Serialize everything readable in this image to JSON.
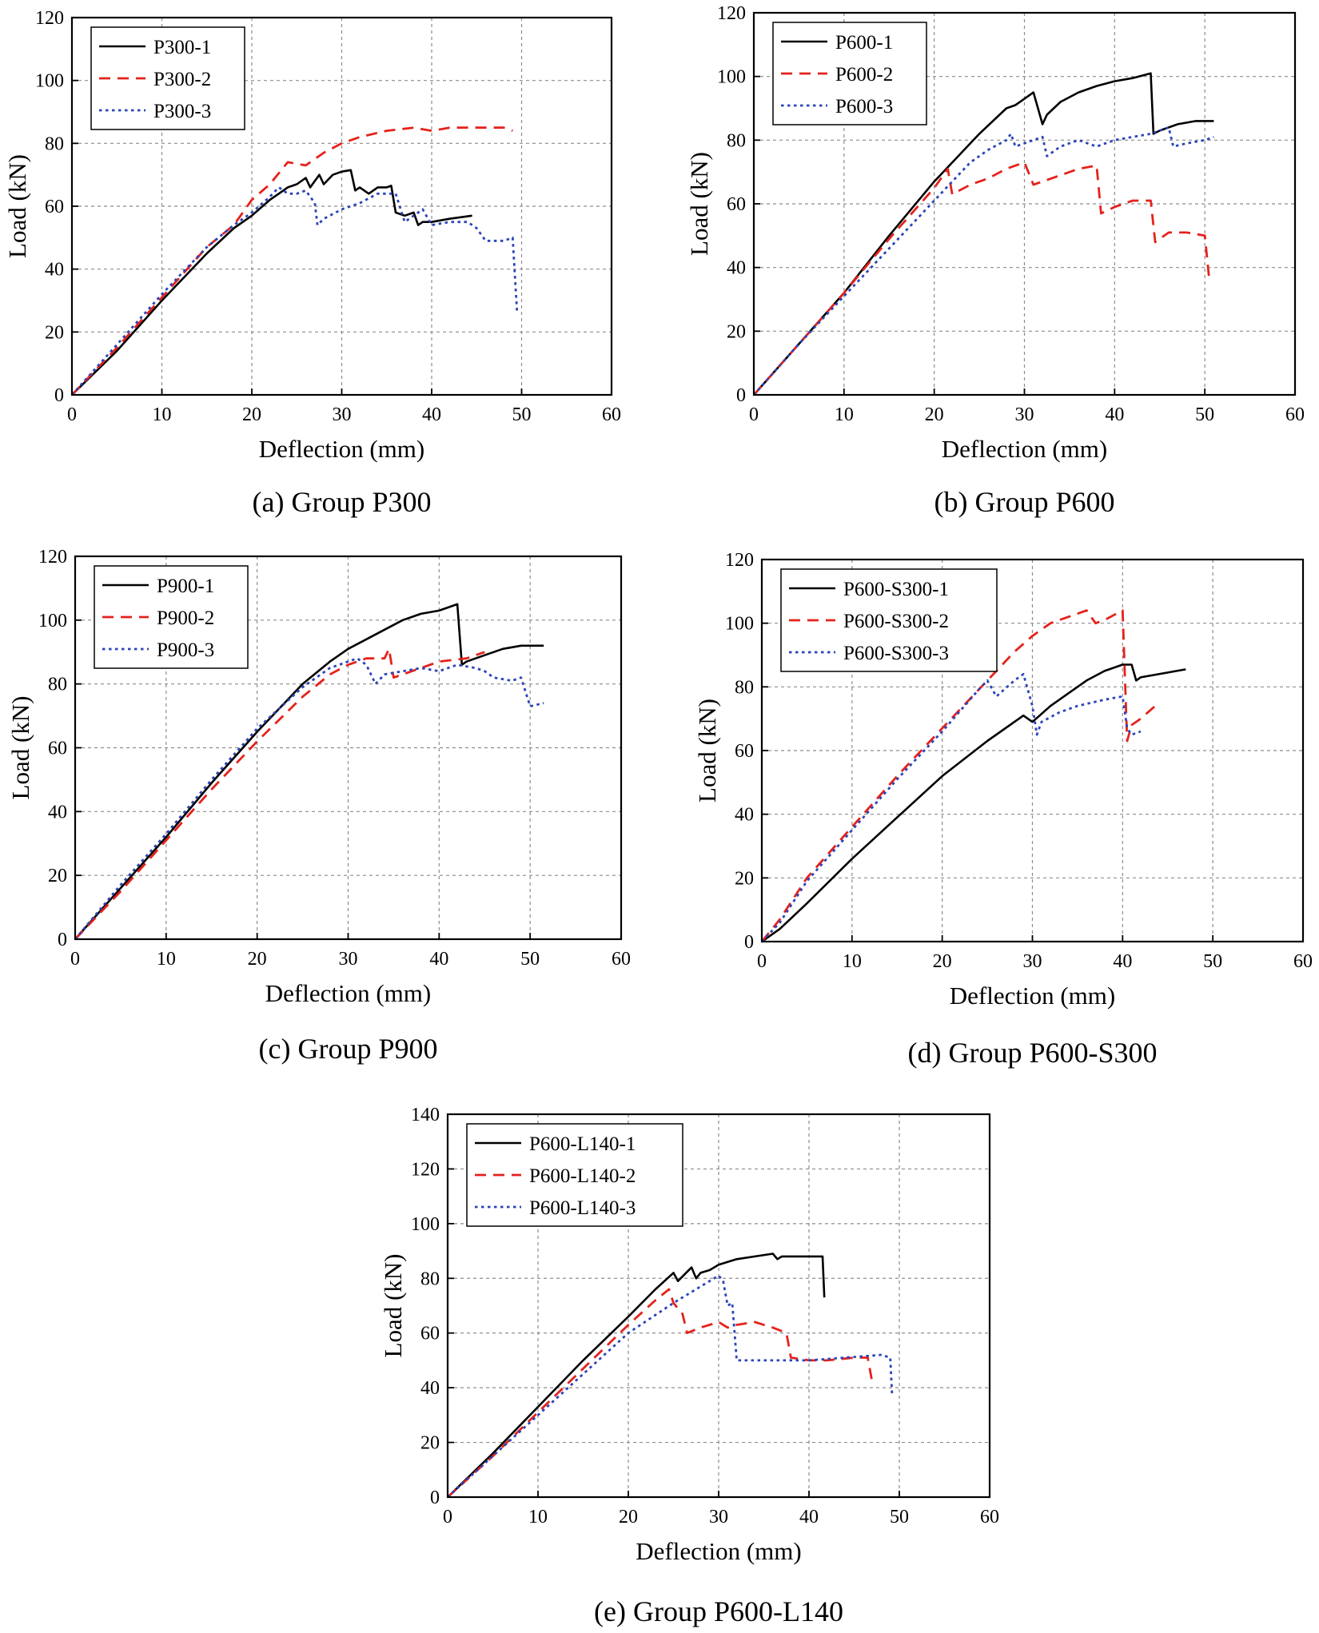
{
  "chart_data": [
    {
      "type": "line",
      "title": "",
      "caption": "(a) Group P300",
      "xlabel": "Deflection (mm)",
      "ylabel": "Load (kN)",
      "xlim": [
        0,
        60
      ],
      "ylim": [
        0,
        120
      ],
      "xticks": [
        0,
        10,
        20,
        30,
        40,
        50,
        60
      ],
      "yticks": [
        0,
        20,
        40,
        60,
        80,
        100,
        120
      ],
      "xtick_labels": [
        "0",
        "10",
        "20",
        "30",
        "40",
        "50",
        "60"
      ],
      "ytick_labels": [
        "0",
        "20",
        "40",
        "60",
        "80",
        "100",
        "120"
      ],
      "grid": true,
      "legend_position": "top-left",
      "series": [
        {
          "name": "P300-1",
          "style": "solid",
          "color": "#000000",
          "x": [
            0,
            5,
            10,
            15,
            18,
            20,
            22,
            23,
            24,
            25,
            26,
            26.5,
            27.5,
            28,
            29,
            30,
            31,
            31.5,
            32,
            33,
            34,
            35,
            35.5,
            36,
            37,
            38,
            38.5,
            39,
            40,
            42,
            44.5
          ],
          "y": [
            0,
            14,
            30,
            45,
            53,
            57,
            62,
            64,
            66,
            67,
            69,
            66,
            70,
            67,
            70,
            71,
            71.5,
            65,
            66,
            64,
            66,
            66,
            66.5,
            58,
            57,
            58,
            54,
            55,
            55,
            56,
            57
          ]
        },
        {
          "name": "P300-2",
          "style": "dashed",
          "color": "#e4221c",
          "x": [
            0,
            5,
            10,
            15,
            18,
            20,
            22,
            24,
            26,
            28,
            30,
            32,
            35,
            38,
            40,
            42,
            45,
            48,
            49
          ],
          "y": [
            0,
            15,
            31,
            47,
            54,
            62,
            67,
            74,
            73,
            77,
            80,
            82,
            84,
            85,
            84,
            85,
            85,
            85,
            84
          ]
        },
        {
          "name": "P300-3",
          "style": "dotted",
          "color": "#2b44b8",
          "x": [
            0,
            5,
            10,
            15,
            18,
            20,
            22,
            23,
            24,
            25,
            26,
            27,
            27.3,
            28,
            30,
            32,
            34,
            36,
            37,
            38,
            39,
            40,
            42,
            44,
            45,
            46,
            48,
            49,
            49.5
          ],
          "y": [
            0,
            16,
            32,
            47,
            54,
            58,
            63,
            66,
            64,
            64,
            65,
            61,
            54,
            56,
            59,
            61,
            64,
            64,
            55,
            57,
            59,
            54,
            55,
            55,
            53,
            49,
            49,
            50,
            26
          ]
        }
      ]
    },
    {
      "type": "line",
      "title": "",
      "caption": "(b) Group P600",
      "xlabel": "Deflection (mm)",
      "ylabel": "Load (kN)",
      "xlim": [
        0,
        60
      ],
      "ylim": [
        0,
        120
      ],
      "xticks": [
        0,
        10,
        20,
        30,
        40,
        50,
        60
      ],
      "yticks": [
        0,
        20,
        40,
        60,
        80,
        100,
        120
      ],
      "xtick_labels": [
        "0",
        "10",
        "20",
        "30",
        "40",
        "50",
        "60"
      ],
      "ytick_labels": [
        "0",
        "20",
        "40",
        "60",
        "80",
        "100",
        "120"
      ],
      "grid": true,
      "legend_position": "top-left",
      "series": [
        {
          "name": "P600-1",
          "style": "solid",
          "color": "#000000",
          "x": [
            0,
            5,
            10,
            15,
            20,
            25,
            28,
            29,
            30,
            31,
            32,
            32.5,
            34,
            36,
            38,
            40,
            42,
            44,
            44.3,
            45,
            47,
            49,
            51
          ],
          "y": [
            0,
            16,
            32,
            50,
            67,
            82,
            90,
            91,
            93,
            95,
            85,
            88,
            92,
            95,
            97,
            98.5,
            99.5,
            101,
            82,
            83,
            85,
            86,
            86
          ]
        },
        {
          "name": "P600-2",
          "style": "dashed",
          "color": "#e4221c",
          "x": [
            0,
            5,
            10,
            15,
            20,
            21.5,
            22,
            24,
            26,
            28,
            30,
            31,
            32,
            34,
            36,
            38,
            38.5,
            40,
            42,
            44,
            44.5,
            46,
            48,
            50,
            50.5
          ],
          "y": [
            0,
            16,
            32,
            49,
            65,
            71,
            63,
            66,
            68,
            71,
            73,
            66,
            67,
            69,
            71,
            72,
            57,
            59,
            61,
            61,
            48,
            51,
            51,
            50,
            36
          ]
        },
        {
          "name": "P600-3",
          "style": "dotted",
          "color": "#2b44b8",
          "x": [
            0,
            5,
            10,
            15,
            20,
            22,
            24,
            26,
            28,
            28.5,
            29,
            30,
            32,
            32.5,
            34,
            36,
            38,
            40,
            42,
            44,
            46,
            46.5,
            48,
            50,
            51
          ],
          "y": [
            0,
            16,
            31,
            46,
            61,
            67,
            73,
            77,
            80,
            82,
            78,
            79,
            81,
            75,
            78,
            80,
            78,
            80,
            81,
            82,
            84,
            78,
            79,
            80,
            81
          ]
        }
      ]
    },
    {
      "type": "line",
      "title": "",
      "caption": "(c) Group P900",
      "xlabel": "Deflection (mm)",
      "ylabel": "Load (kN)",
      "xlim": [
        0,
        60
      ],
      "ylim": [
        0,
        120
      ],
      "xticks": [
        0,
        10,
        20,
        30,
        40,
        50,
        60
      ],
      "yticks": [
        0,
        20,
        40,
        60,
        80,
        100,
        120
      ],
      "xtick_labels": [
        "0",
        "10",
        "20",
        "30",
        "40",
        "50",
        "60"
      ],
      "ytick_labels": [
        "0",
        "20",
        "40",
        "60",
        "80",
        "100",
        "120"
      ],
      "grid": true,
      "legend_position": "top-left",
      "series": [
        {
          "name": "P900-1",
          "style": "solid",
          "color": "#000000",
          "x": [
            0,
            5,
            10,
            15,
            20,
            25,
            28,
            30,
            32,
            34,
            36,
            38,
            40,
            41,
            42,
            42.5,
            43,
            45,
            47,
            49,
            51.5
          ],
          "y": [
            0,
            16,
            32,
            49,
            65,
            80,
            87,
            91,
            94,
            97,
            100,
            102,
            103,
            104,
            105,
            86,
            87,
            89,
            91,
            92,
            92
          ]
        },
        {
          "name": "P900-2",
          "style": "dashed",
          "color": "#e4221c",
          "x": [
            0,
            5,
            10,
            15,
            20,
            25,
            28,
            30,
            32,
            34,
            34.5,
            35,
            37,
            40,
            43,
            45
          ],
          "y": [
            0,
            15,
            31,
            47,
            62,
            76,
            83,
            86,
            88,
            88,
            91,
            82,
            84,
            87,
            88,
            90
          ]
        },
        {
          "name": "P900-3",
          "style": "dotted",
          "color": "#2b44b8",
          "x": [
            0,
            5,
            10,
            15,
            20,
            25,
            28,
            30,
            31,
            32,
            33,
            34,
            36,
            38,
            40,
            42,
            44,
            45,
            46,
            48,
            49,
            50,
            51.5
          ],
          "y": [
            0,
            17,
            33,
            50,
            66,
            79,
            85,
            87,
            88,
            86,
            80,
            83,
            84,
            85,
            84,
            86,
            85,
            84,
            82,
            81,
            82,
            73,
            74
          ]
        }
      ]
    },
    {
      "type": "line",
      "title": "",
      "caption": "(d) Group P600-S300",
      "xlabel": "Deflection (mm)",
      "ylabel": "Load (kN)",
      "xlim": [
        0,
        60
      ],
      "ylim": [
        0,
        120
      ],
      "xticks": [
        0,
        10,
        20,
        30,
        40,
        50,
        60
      ],
      "yticks": [
        0,
        20,
        40,
        60,
        80,
        100,
        120
      ],
      "xtick_labels": [
        "0",
        "10",
        "20",
        "30",
        "40",
        "50",
        "60"
      ],
      "ytick_labels": [
        "0",
        "20",
        "40",
        "60",
        "80",
        "100",
        "120"
      ],
      "grid": true,
      "legend_position": "top-left",
      "series": [
        {
          "name": "P600-S300-1",
          "style": "solid",
          "color": "#000000",
          "x": [
            0,
            2,
            5,
            10,
            15,
            20,
            25,
            28,
            29,
            30,
            32,
            34,
            36,
            38,
            40,
            41,
            41.5,
            42,
            44,
            46,
            47
          ],
          "y": [
            0,
            4,
            12,
            26,
            39,
            52,
            63,
            69,
            71,
            69,
            74,
            78,
            82,
            85,
            87,
            87,
            82,
            83,
            84,
            85,
            85.5
          ]
        },
        {
          "name": "P600-S300-2",
          "style": "dashed",
          "color": "#e4221c",
          "x": [
            0,
            2,
            5,
            10,
            15,
            20,
            25,
            28,
            30,
            32,
            34,
            36,
            37,
            38,
            40,
            40.5,
            41,
            42,
            44
          ],
          "y": [
            0,
            7,
            20,
            36,
            52,
            67,
            82,
            91,
            96,
            100,
            102,
            104,
            100,
            101,
            104,
            63,
            68,
            70,
            75
          ]
        },
        {
          "name": "P600-S300-3",
          "style": "dotted",
          "color": "#2b44b8",
          "x": [
            0,
            2,
            5,
            10,
            15,
            20,
            24,
            25,
            26,
            28,
            29,
            30,
            30.5,
            31,
            33,
            35,
            38,
            40,
            40.5,
            41,
            42
          ],
          "y": [
            0,
            6,
            19,
            35,
            51,
            66,
            79,
            82,
            77,
            82,
            84,
            74,
            65,
            69,
            72,
            74,
            76,
            77,
            67,
            65,
            66
          ]
        }
      ]
    },
    {
      "type": "line",
      "title": "",
      "caption": "(e) Group P600-L140",
      "xlabel": "Deflection (mm)",
      "ylabel": "Load (kN)",
      "xlim": [
        0,
        60
      ],
      "ylim": [
        0,
        140
      ],
      "xticks": [
        0,
        10,
        20,
        30,
        40,
        50,
        60
      ],
      "yticks": [
        0,
        20,
        40,
        60,
        80,
        100,
        120,
        140
      ],
      "xtick_labels": [
        "0",
        "10",
        "20",
        "30",
        "40",
        "50",
        "60"
      ],
      "ytick_labels": [
        "0",
        "20",
        "40",
        "60",
        "80",
        "100",
        "120",
        "140"
      ],
      "grid": true,
      "legend_position": "top-left",
      "series": [
        {
          "name": "P600-L140-1",
          "style": "solid",
          "color": "#000000",
          "x": [
            0,
            5,
            10,
            15,
            20,
            23,
            25,
            25.5,
            27,
            27.5,
            28,
            29,
            30,
            32,
            34,
            36,
            36.5,
            37,
            39,
            41.5,
            41.7
          ],
          "y": [
            0,
            16,
            33,
            50,
            66,
            76,
            82,
            79,
            84,
            80,
            82,
            83,
            85,
            87,
            88,
            89,
            87,
            88,
            88,
            88,
            73
          ]
        },
        {
          "name": "P600-L140-2",
          "style": "dashed",
          "color": "#e4221c",
          "x": [
            0,
            5,
            10,
            15,
            20,
            23,
            24.5,
            25,
            26,
            26.5,
            28,
            30,
            31,
            32,
            34,
            36,
            37.5,
            38,
            40,
            42,
            45,
            46.5,
            47
          ],
          "y": [
            0,
            15,
            31,
            47,
            63,
            72,
            76,
            71,
            67,
            60,
            62,
            64,
            62,
            63,
            64,
            62,
            60,
            51,
            50,
            50,
            51,
            51,
            42
          ]
        },
        {
          "name": "P600-L140-3",
          "style": "dotted",
          "color": "#2b44b8",
          "x": [
            0,
            5,
            10,
            15,
            20,
            25,
            28,
            30,
            30.5,
            31,
            31.5,
            32,
            34,
            36,
            40,
            44,
            48,
            49,
            49.2
          ],
          "y": [
            0,
            15,
            30,
            45,
            60,
            71,
            77,
            81,
            79,
            70,
            71,
            50,
            50,
            50,
            50,
            51,
            52,
            51,
            37
          ]
        }
      ]
    }
  ]
}
